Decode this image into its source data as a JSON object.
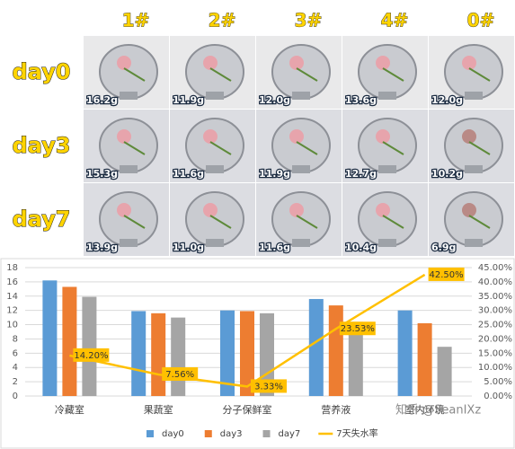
{
  "photo_grid": {
    "columns": [
      "1#",
      "2#",
      "3#",
      "4#",
      "0#"
    ],
    "rows": [
      "day0",
      "day3",
      "day7"
    ],
    "weights": [
      [
        "16.2g",
        "11.9g",
        "12.0g",
        "13.6g",
        "12.0g"
      ],
      [
        "15.3g",
        "11.6g",
        "11.9g",
        "12.7g",
        "10.2g"
      ],
      [
        "13.9g",
        "11.0g",
        "11.6g",
        "10.4g",
        "6.9g"
      ]
    ]
  },
  "chart_data": {
    "type": "bar",
    "categories": [
      "冷藏室",
      "果蔬室",
      "分子保鲜室",
      "营养液",
      "室内环境"
    ],
    "series": [
      {
        "name": "day0",
        "color": "#5b9bd5",
        "values": [
          16.2,
          11.9,
          12.0,
          13.6,
          12.0
        ]
      },
      {
        "name": "day3",
        "color": "#ed7d31",
        "values": [
          15.3,
          11.6,
          11.9,
          12.7,
          10.2
        ]
      },
      {
        "name": "day7",
        "color": "#a5a5a5",
        "values": [
          13.9,
          11.0,
          11.6,
          10.4,
          6.9
        ]
      },
      {
        "name": "7天失水率",
        "color": "#ffc000",
        "type": "line",
        "axis": "y2",
        "values": [
          14.2,
          7.56,
          3.33,
          23.53,
          42.5
        ],
        "value_labels": [
          "14.20%",
          "7.56%",
          "3.33%",
          "23.53%",
          "42.50%"
        ]
      }
    ],
    "ylim": [
      0,
      18
    ],
    "yticks": [
      0,
      2,
      4,
      6,
      8,
      10,
      12,
      14,
      16,
      18
    ],
    "y2lim": [
      0,
      45
    ],
    "y2ticks": [
      {
        "value": 0,
        "label": "0.00%"
      },
      {
        "value": 5,
        "label": "5.00%"
      },
      {
        "value": 10,
        "label": "10.00%"
      },
      {
        "value": 15,
        "label": "15.00%"
      },
      {
        "value": 20,
        "label": "20.00%"
      },
      {
        "value": 25,
        "label": "25.00%"
      },
      {
        "value": 30,
        "label": "30.00%"
      },
      {
        "value": 35,
        "label": "35.00%"
      },
      {
        "value": 40,
        "label": "40.00%"
      },
      {
        "value": 45,
        "label": "45.00%"
      }
    ],
    "grid": true,
    "legend": "bottom"
  },
  "watermark": "知乎 @SeanIXz"
}
